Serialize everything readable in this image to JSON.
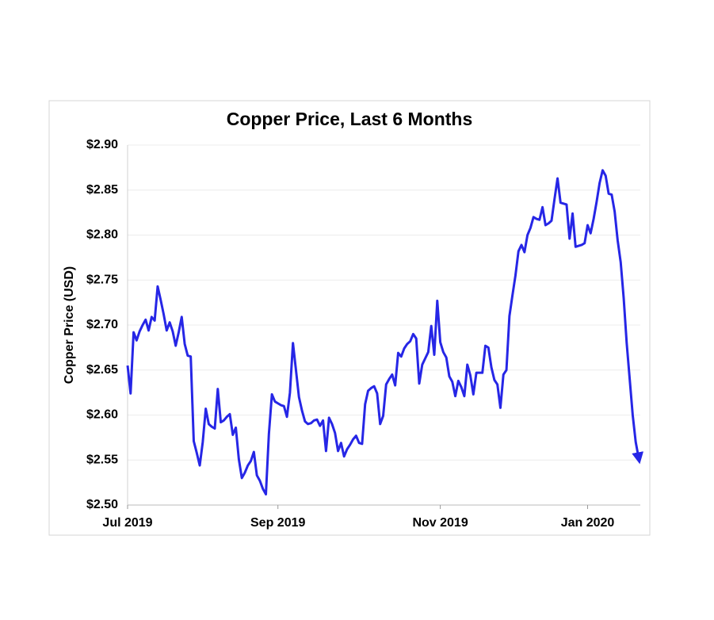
{
  "chart_data": {
    "type": "line",
    "title": "Copper Price, Last 6 Months",
    "y_label": "Copper Price (USD)",
    "categories": [
      "Jul 2019",
      null,
      null,
      null,
      null,
      null,
      null,
      null,
      null,
      null,
      null,
      null,
      null,
      null,
      null,
      null,
      null,
      null,
      null,
      null,
      null,
      null,
      null,
      null,
      null,
      null,
      null,
      null,
      null,
      null,
      null,
      null,
      null,
      null,
      null,
      null,
      null,
      null,
      null,
      null,
      null,
      null,
      null,
      null,
      null,
      null,
      null,
      null,
      null,
      null,
      "Sep 2019",
      null,
      null,
      null,
      null,
      null,
      null,
      null,
      null,
      null,
      null,
      null,
      null,
      null,
      null,
      null,
      null,
      null,
      null,
      null,
      null,
      null,
      null,
      null,
      null,
      null,
      null,
      null,
      null,
      null,
      null,
      null,
      null,
      null,
      null,
      null,
      null,
      null,
      null,
      null,
      null,
      null,
      null,
      null,
      null,
      null,
      null,
      null,
      null,
      null,
      null,
      null,
      null,
      null,
      "Nov 2019",
      null,
      null,
      null,
      null,
      null,
      null,
      null,
      null,
      null,
      null,
      null,
      null,
      null,
      null,
      null,
      null,
      null,
      null,
      null,
      null,
      null,
      null,
      null,
      null,
      null,
      null,
      null,
      null,
      null,
      null,
      null,
      null,
      null,
      null,
      null,
      null,
      null,
      null,
      null,
      null,
      null,
      null,
      null,
      null,
      null,
      null,
      null,
      null,
      "Jan 2020",
      null,
      null,
      null,
      null,
      null,
      null,
      null,
      null,
      null,
      null,
      null,
      null,
      null,
      null,
      null,
      null,
      null
    ],
    "series": [
      {
        "name": "Copper Price",
        "color": "#2626e6",
        "values": [
          2.655,
          2.624,
          2.692,
          2.683,
          2.693,
          2.7,
          2.706,
          2.694,
          2.709,
          2.705,
          2.743,
          2.728,
          2.712,
          2.694,
          2.703,
          2.693,
          2.677,
          2.692,
          2.709,
          2.679,
          2.666,
          2.665,
          2.571,
          2.558,
          2.544,
          2.57,
          2.607,
          2.59,
          2.587,
          2.585,
          2.629,
          2.592,
          2.594,
          2.598,
          2.601,
          2.578,
          2.586,
          2.551,
          2.53,
          2.536,
          2.544,
          2.549,
          2.559,
          2.533,
          2.527,
          2.518,
          2.512,
          2.579,
          2.623,
          2.615,
          2.613,
          2.611,
          2.61,
          2.598,
          2.625,
          2.68,
          2.65,
          2.62,
          2.605,
          2.593,
          2.59,
          2.591,
          2.594,
          2.595,
          2.588,
          2.594,
          2.56,
          2.597,
          2.59,
          2.58,
          2.56,
          2.569,
          2.554,
          2.562,
          2.567,
          2.573,
          2.577,
          2.569,
          2.568,
          2.612,
          2.627,
          2.63,
          2.632,
          2.624,
          2.59,
          2.599,
          2.634,
          2.64,
          2.645,
          2.633,
          2.669,
          2.665,
          2.674,
          2.679,
          2.682,
          2.69,
          2.685,
          2.635,
          2.656,
          2.663,
          2.67,
          2.699,
          2.667,
          2.727,
          2.681,
          2.67,
          2.664,
          2.643,
          2.637,
          2.621,
          2.638,
          2.631,
          2.621,
          2.656,
          2.644,
          2.623,
          2.647,
          2.647,
          2.647,
          2.677,
          2.675,
          2.653,
          2.639,
          2.634,
          2.608,
          2.645,
          2.65,
          2.71,
          2.733,
          2.755,
          2.782,
          2.789,
          2.781,
          2.8,
          2.808,
          2.82,
          2.818,
          2.817,
          2.831,
          2.811,
          2.813,
          2.816,
          2.84,
          2.863,
          2.836,
          2.835,
          2.834,
          2.796,
          2.824,
          2.787,
          2.788,
          2.789,
          2.791,
          2.811,
          2.802,
          2.818,
          2.837,
          2.858,
          2.872,
          2.866,
          2.846,
          2.845,
          2.826,
          2.794,
          2.77,
          2.73,
          2.68,
          2.64,
          2.6,
          2.57,
          2.552
        ]
      }
    ],
    "ylim": [
      2.5,
      2.9
    ],
    "yticks": [
      {
        "value": 2.5,
        "label": "$2.50"
      },
      {
        "value": 2.55,
        "label": "$2.55"
      },
      {
        "value": 2.6,
        "label": "$2.60"
      },
      {
        "value": 2.65,
        "label": "$2.65"
      },
      {
        "value": 2.7,
        "label": "$2.70"
      },
      {
        "value": 2.75,
        "label": "$2.75"
      },
      {
        "value": 2.8,
        "label": "$2.80"
      },
      {
        "value": 2.85,
        "label": "$2.85"
      },
      {
        "value": 2.9,
        "label": "$2.90"
      }
    ],
    "grid": true
  }
}
